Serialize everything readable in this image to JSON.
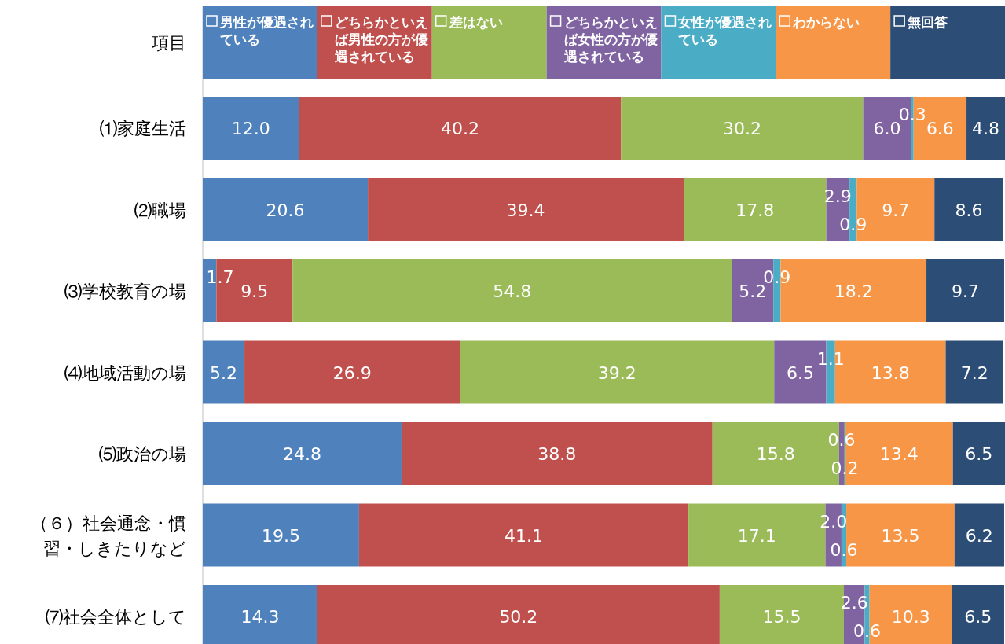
{
  "chart_data": {
    "type": "bar",
    "orientation": "horizontal",
    "stacked": true,
    "legend": "top",
    "legend_title": "項目",
    "xlim": [
      0,
      100.1
    ],
    "categories": [
      "⑴家庭生活",
      "⑵職場",
      "⑶学校教育の場",
      "⑷地域活動の場",
      "⑸政治の場",
      "（６）社会通念・慣習・しきたりなど",
      "⑺社会全体として"
    ],
    "series": [
      {
        "name": "男性が優遇されている",
        "color": "#4f81bd",
        "values": [
          12.0,
          20.6,
          1.7,
          5.2,
          24.8,
          19.5,
          14.3
        ],
        "value_labels": [
          "12.0",
          "20.6",
          "1.7",
          "5.2",
          "24.8",
          "19.5",
          "14.3"
        ]
      },
      {
        "name": "どちらかといえば男性の方が優遇されている",
        "color": "#c0504d",
        "values": [
          40.2,
          39.4,
          9.5,
          26.9,
          38.8,
          41.1,
          50.2
        ],
        "value_labels": [
          "40.2",
          "39.4",
          "9.5",
          "26.9",
          "38.8",
          "41.1",
          "50.2"
        ]
      },
      {
        "name": "差はない",
        "color": "#9bbb59",
        "values": [
          30.2,
          17.8,
          54.8,
          39.2,
          15.8,
          17.1,
          15.5
        ],
        "value_labels": [
          "30.2",
          "17.8",
          "54.8",
          "39.2",
          "15.8",
          "17.1",
          "15.5"
        ]
      },
      {
        "name": "どちらかといえば女性の方が優遇されている",
        "color": "#8064a2",
        "values": [
          6.0,
          2.9,
          5.2,
          6.5,
          0.6,
          2.0,
          2.6
        ],
        "value_labels": [
          "6.0",
          "2.9",
          "5.2",
          "6.5",
          "0.6",
          "2.0",
          "2.6"
        ]
      },
      {
        "name": "女性が優遇されている",
        "color": "#4bacc6",
        "values": [
          0.3,
          0.9,
          0.9,
          1.1,
          0.2,
          0.6,
          0.6
        ],
        "value_labels": [
          "0.3",
          "0.9",
          "0.9",
          "1.1",
          "0.2",
          "0.6",
          "0.6"
        ]
      },
      {
        "name": "わからない",
        "color": "#f79646",
        "values": [
          6.6,
          9.7,
          18.2,
          13.8,
          13.4,
          13.5,
          10.3
        ],
        "value_labels": [
          "6.6",
          "9.7",
          "18.2",
          "13.8",
          "13.4",
          "13.5",
          "10.3"
        ]
      },
      {
        "name": "無回答",
        "color": "#2c4d75",
        "values": [
          4.8,
          8.6,
          9.7,
          7.2,
          6.5,
          6.2,
          6.5
        ],
        "value_labels": [
          "4.8",
          "8.6",
          "9.7",
          "7.2",
          "6.5",
          "6.2",
          "6.5"
        ]
      }
    ]
  }
}
